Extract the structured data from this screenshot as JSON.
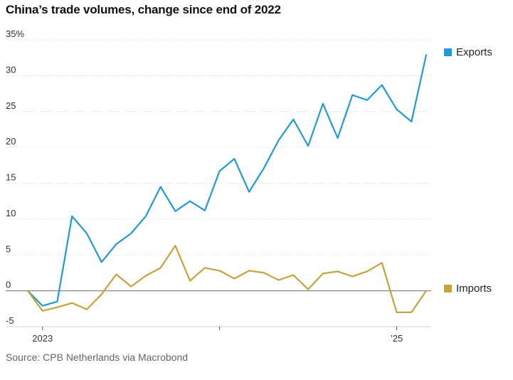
{
  "title": "China’s trade volumes, change since end of 2022",
  "source": "Source: CPB Netherlands via Macrobond",
  "chart_data": {
    "type": "line",
    "title": "China’s trade volumes, change since end of 2022",
    "xlabel": "",
    "ylabel": "",
    "unit": "%",
    "ylim": [
      -5,
      35
    ],
    "y_ticks": [
      "35%",
      "30",
      "25",
      "20",
      "15",
      "10",
      "5",
      "0",
      "-5"
    ],
    "x_ticks": [
      "2023",
      "’25"
    ],
    "x": [
      "2022-12",
      "2023-01",
      "2023-02",
      "2023-03",
      "2023-04",
      "2023-05",
      "2023-06",
      "2023-07",
      "2023-08",
      "2023-09",
      "2023-10",
      "2023-11",
      "2023-12",
      "2024-01",
      "2024-02",
      "2024-03",
      "2024-04",
      "2024-05",
      "2024-06",
      "2024-07",
      "2024-08",
      "2024-09",
      "2024-10",
      "2024-11",
      "2024-12",
      "2025-01",
      "2025-02",
      "2025-03"
    ],
    "grid": true,
    "legend": "right, labels at line ends",
    "series": [
      {
        "name": "Exports",
        "color": "#1f9ad6",
        "values": [
          0,
          -2.1,
          -1.5,
          10.4,
          8.0,
          4.0,
          6.5,
          8.0,
          10.4,
          14.5,
          11.1,
          12.5,
          11.2,
          16.7,
          18.4,
          13.8,
          17.1,
          21.0,
          23.9,
          20.2,
          26.1,
          21.3,
          27.3,
          26.6,
          28.7,
          25.3,
          23.6,
          32.9
        ]
      },
      {
        "name": "Imports",
        "color": "#c6a23a",
        "values": [
          0,
          -2.8,
          -2.3,
          -1.7,
          -2.6,
          -0.5,
          2.3,
          0.6,
          2.1,
          3.2,
          6.3,
          1.4,
          3.2,
          2.8,
          1.7,
          2.8,
          2.5,
          1.5,
          2.2,
          0.2,
          2.4,
          2.7,
          2.0,
          2.7,
          3.9,
          -3.0,
          -3.0,
          0.0
        ]
      }
    ]
  }
}
